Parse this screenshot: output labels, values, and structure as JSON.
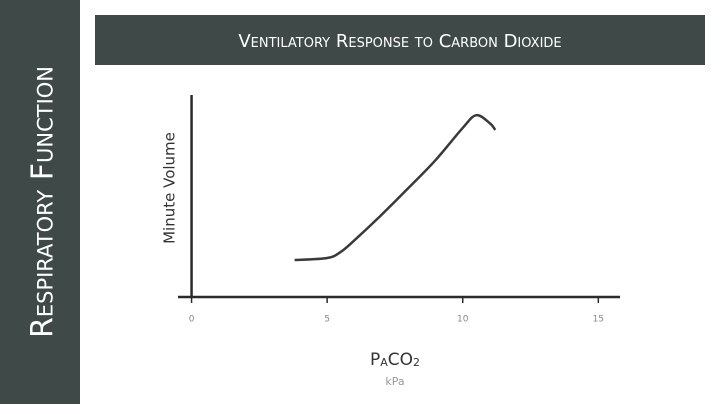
{
  "sidebar_title": "Respiratory Function",
  "chart_data": {
    "type": "line",
    "title": "Ventilatory Response to Carbon Dioxide",
    "y_label": "Minute Volume",
    "x_label": [
      "P",
      "A",
      "CO",
      "2"
    ],
    "x_unit": "kPa",
    "x": [
      3.8,
      5,
      5.5,
      6,
      7,
      8,
      9,
      10,
      10.5,
      11,
      11.2
    ],
    "series": [
      {
        "color": "#3a3a3a",
        "values": [
          18.3,
          19.3,
          22.3,
          28,
          40.6,
          54,
          67.8,
          83.7,
          90,
          86,
          82.7
        ]
      }
    ],
    "xlim": [
      -0.5,
      15.8
    ],
    "ylim": [
      0,
      100
    ],
    "xticks": [
      0,
      5,
      10,
      15
    ]
  }
}
